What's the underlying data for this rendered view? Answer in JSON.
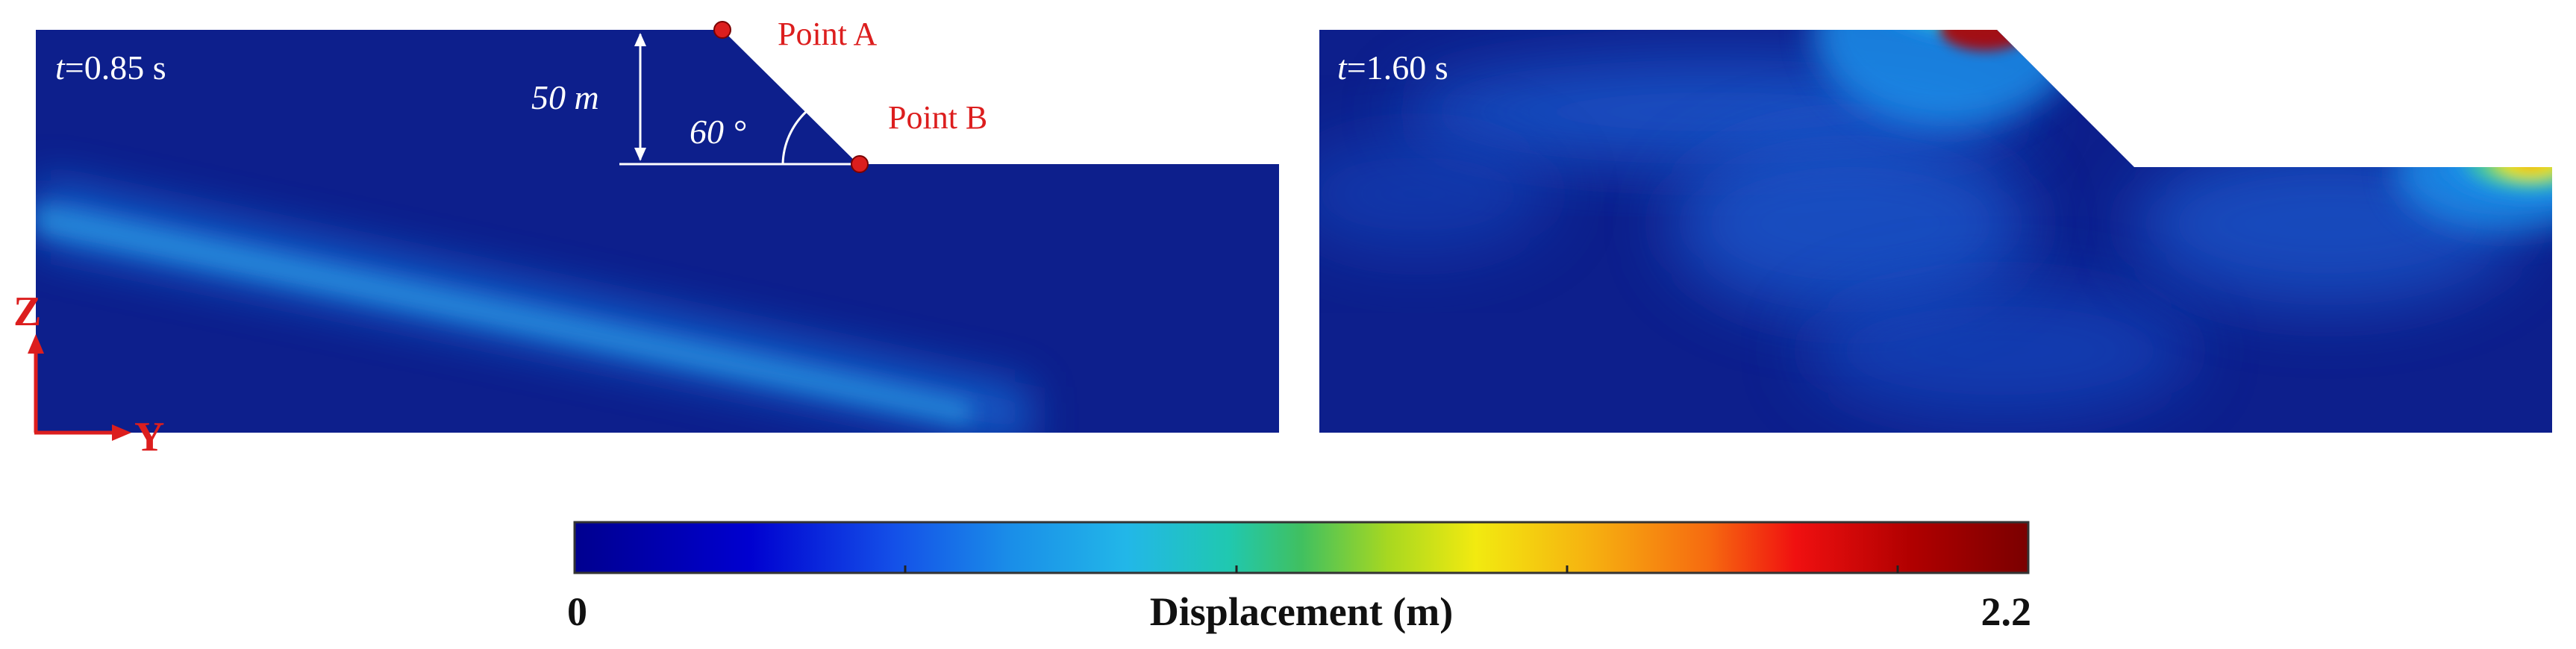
{
  "panels": [
    {
      "time_prefix": "t",
      "time_value": "=0.85 s"
    },
    {
      "time_prefix": "t",
      "time_value": "=1.60 s"
    }
  ],
  "geometry_labels": {
    "height": "50 m",
    "angle": "60 °",
    "point_a": "Point A",
    "point_b": "Point B"
  },
  "axes": {
    "z": "Z",
    "y": "Y"
  },
  "colorbar": {
    "label": "Displacement (m)",
    "min_label": "0",
    "max_label": "2.2",
    "min": 0,
    "max": 2.2,
    "colors": [
      "#00008f",
      "#0000d0",
      "#1450e8",
      "#1a8ee8",
      "#22b7e8",
      "#20c8b0",
      "#40c060",
      "#a8d820",
      "#f2ea10",
      "#f6b010",
      "#f66a10",
      "#f01010",
      "#b00000",
      "#7a0000"
    ]
  },
  "colors": {
    "background_field": "#0d1f8c",
    "annotation_red": "#dc1e1e",
    "annotation_white": "#ffffff"
  }
}
